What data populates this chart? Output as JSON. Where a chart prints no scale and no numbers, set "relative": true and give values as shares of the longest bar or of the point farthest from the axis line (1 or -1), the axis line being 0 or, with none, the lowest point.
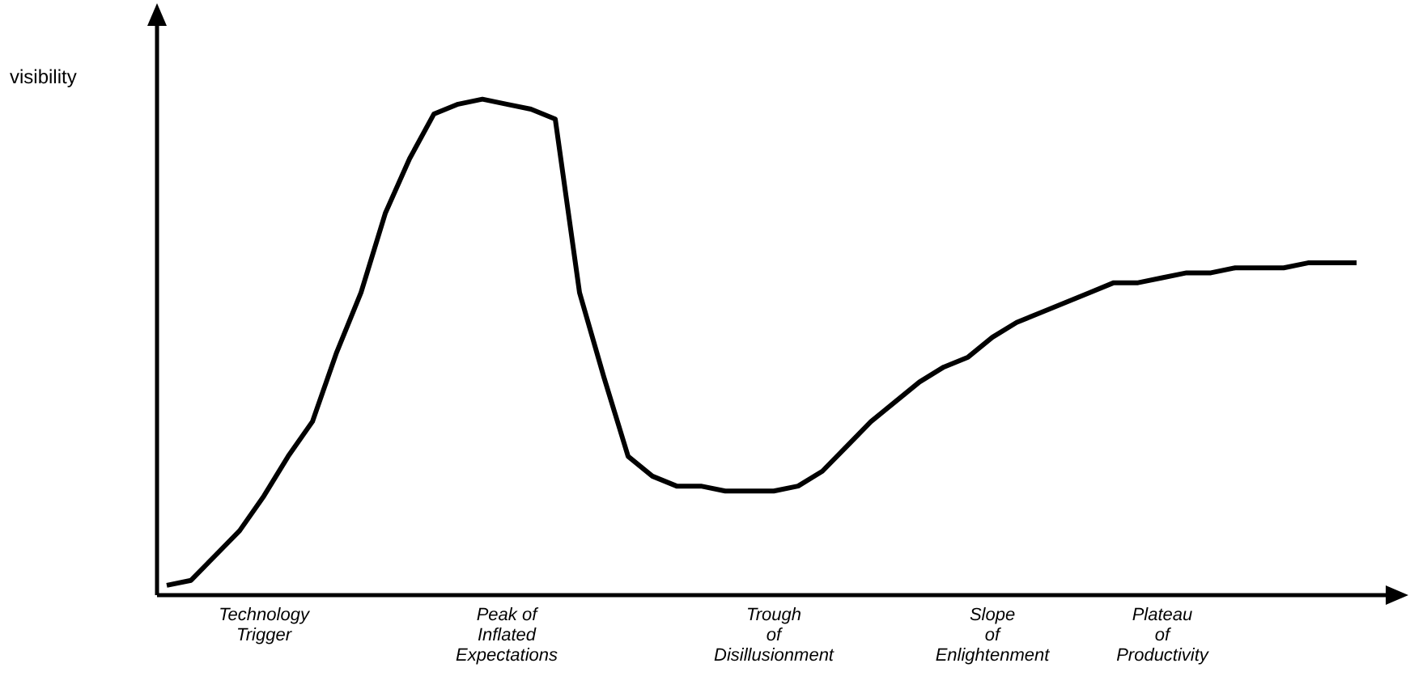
{
  "chart_data": {
    "type": "line",
    "ylabel": "visibility",
    "relative": true,
    "color": "#000000",
    "categories": [
      null,
      null,
      null,
      null,
      "Technology\nTrigger",
      null,
      null,
      null,
      null,
      null,
      null,
      null,
      null,
      null,
      "Peak of\nInflated\nExpectations",
      null,
      null,
      null,
      null,
      null,
      null,
      null,
      null,
      null,
      null,
      "Trough\nof\nDisillusionment",
      null,
      null,
      null,
      null,
      null,
      null,
      null,
      null,
      "Slope\nof\nEnlightenment",
      null,
      null,
      null,
      null,
      null,
      null,
      "Plateau\nof\nProductivity",
      null,
      null,
      null,
      null,
      null,
      null,
      null,
      null
    ],
    "values": [
      0.02,
      0.03,
      0.08,
      0.13,
      0.2,
      0.28,
      0.35,
      0.49,
      0.61,
      0.77,
      0.88,
      0.97,
      0.99,
      1,
      0.99,
      0.98,
      0.96,
      0.61,
      0.44,
      0.28,
      0.24,
      0.22,
      0.22,
      0.21,
      0.21,
      0.21,
      0.22,
      0.25,
      0.3,
      0.35,
      0.39,
      0.43,
      0.46,
      0.48,
      0.52,
      0.55,
      0.57,
      0.59,
      0.61,
      0.63,
      0.63,
      0.64,
      0.65,
      0.65,
      0.66,
      0.66,
      0.66,
      0.67,
      0.67,
      0.67
    ]
  }
}
